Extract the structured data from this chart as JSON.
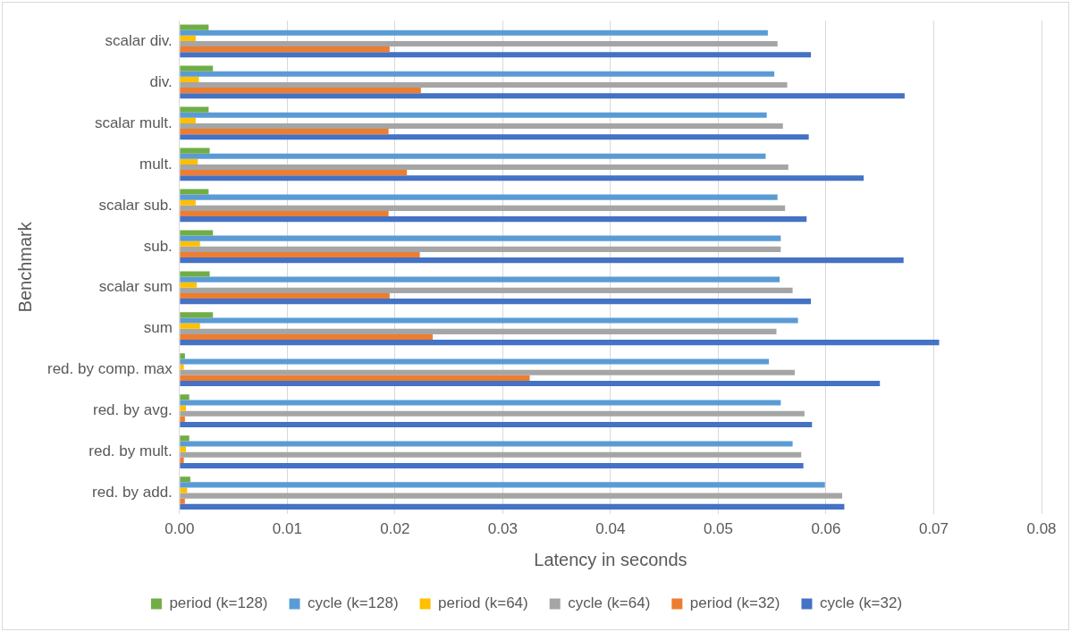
{
  "chart_data": {
    "type": "bar",
    "orientation": "horizontal",
    "xlabel": "Latency in seconds",
    "ylabel": "Benchmark",
    "categories": [
      "scalar div.",
      "div.",
      "scalar mult.",
      "mult.",
      "scalar sub.",
      "sub.",
      "scalar sum",
      "sum",
      "red. by comp. max",
      "red. by avg.",
      "red. by mult.",
      "red. by add."
    ],
    "series": [
      {
        "name": "period (k=128)",
        "color": "#70ad47",
        "values": [
          0.0027,
          0.0031,
          0.0027,
          0.0028,
          0.0027,
          0.0031,
          0.0028,
          0.0031,
          0.0005,
          0.0009,
          0.0009,
          0.001
        ]
      },
      {
        "name": "cycle (k=128)",
        "color": "#5b9bd5",
        "values": [
          0.0546,
          0.0552,
          0.0545,
          0.0544,
          0.0555,
          0.0558,
          0.0557,
          0.0574,
          0.0547,
          0.0558,
          0.0569,
          0.0599
        ]
      },
      {
        "name": "period (k=64)",
        "color": "#ffc000",
        "values": [
          0.0015,
          0.0018,
          0.0015,
          0.0017,
          0.0015,
          0.0019,
          0.0016,
          0.0019,
          0.0004,
          0.0006,
          0.0006,
          0.0007
        ]
      },
      {
        "name": "cycle (k=64)",
        "color": "#a5a5a5",
        "values": [
          0.0555,
          0.0564,
          0.056,
          0.0565,
          0.0562,
          0.0558,
          0.0569,
          0.0554,
          0.0571,
          0.058,
          0.0577,
          0.0615
        ]
      },
      {
        "name": "period (k=32)",
        "color": "#ed7d31",
        "values": [
          0.0195,
          0.0224,
          0.0194,
          0.0211,
          0.0194,
          0.0223,
          0.0195,
          0.0235,
          0.0325,
          0.0005,
          0.0004,
          0.0005
        ]
      },
      {
        "name": "cycle (k=32)",
        "color": "#4472c4",
        "values": [
          0.0586,
          0.0673,
          0.0584,
          0.0635,
          0.0582,
          0.0672,
          0.0586,
          0.0705,
          0.065,
          0.0587,
          0.0579,
          0.0617
        ]
      }
    ],
    "xlim": [
      0,
      0.08
    ],
    "xticks": [
      {
        "value": 0,
        "label": "0.00"
      },
      {
        "value": 0.01,
        "label": "0.01"
      },
      {
        "value": 0.02,
        "label": "0.02"
      },
      {
        "value": 0.03,
        "label": "0.03"
      },
      {
        "value": 0.04,
        "label": "0.04"
      },
      {
        "value": 0.05,
        "label": "0.05"
      },
      {
        "value": 0.06,
        "label": "0.06"
      },
      {
        "value": 0.07,
        "label": "0.07"
      },
      {
        "value": 0.08,
        "label": "0.08"
      }
    ],
    "grid": "x",
    "legend": "bottom"
  }
}
